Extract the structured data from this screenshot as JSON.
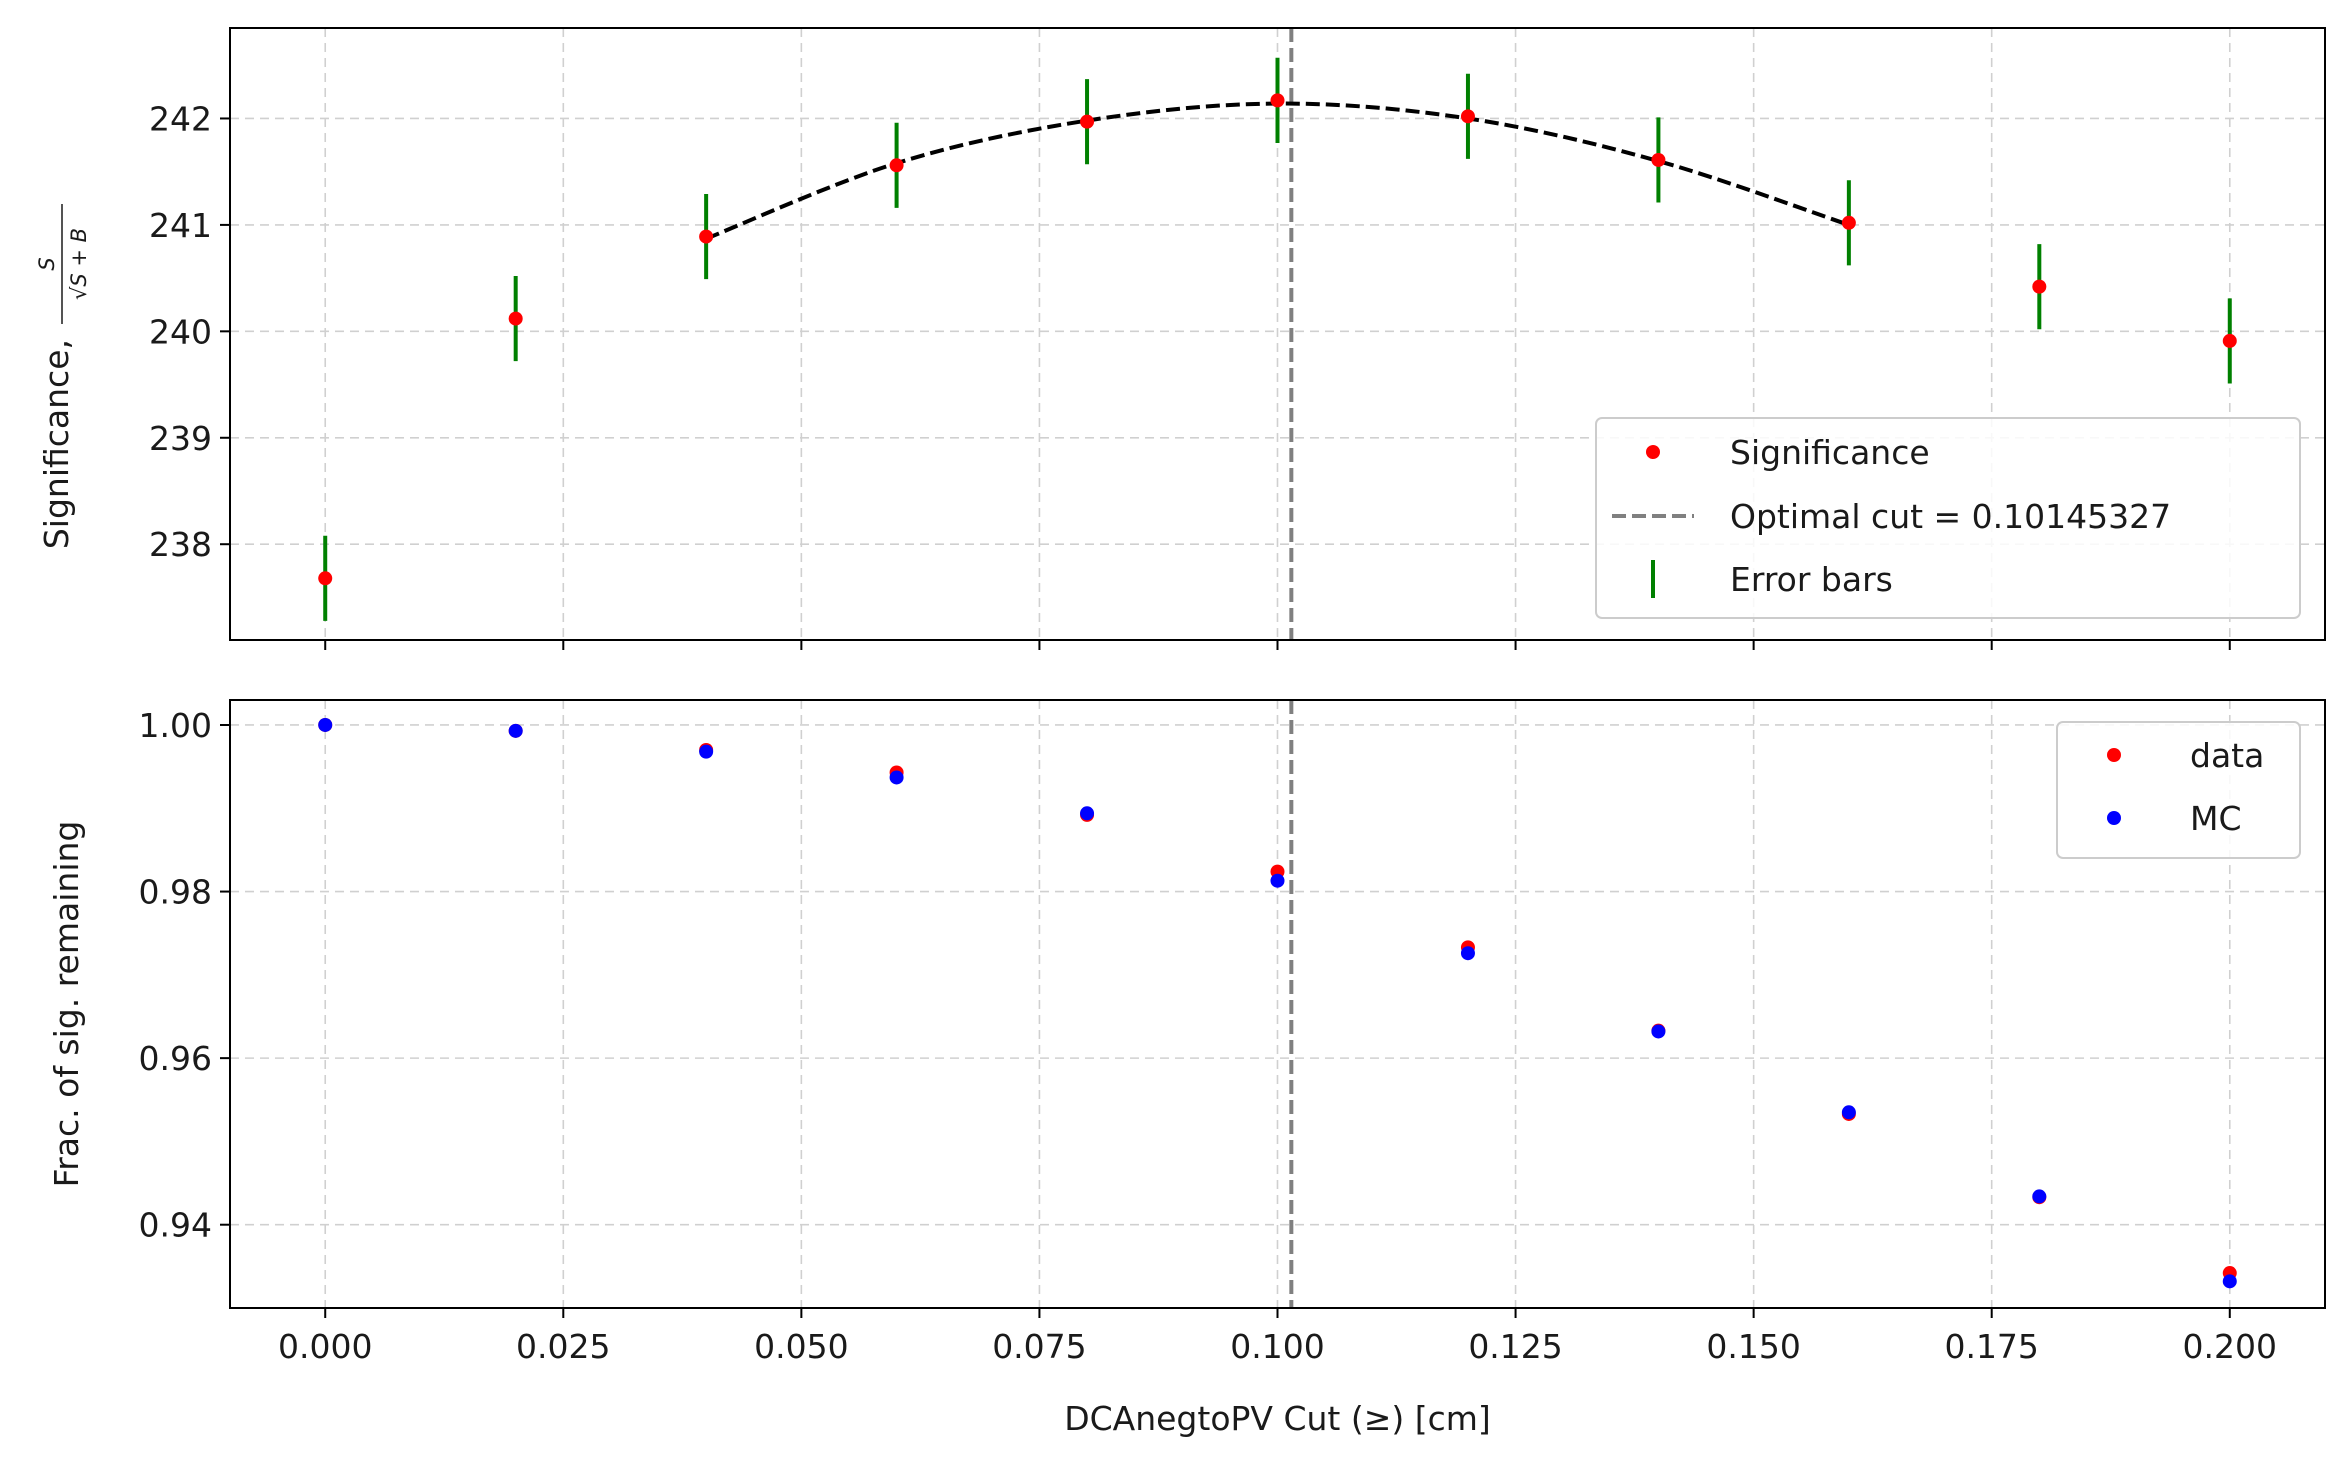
{
  "chart_data": [
    {
      "type": "scatter",
      "panel": "top",
      "xlim": [
        -0.01,
        0.21
      ],
      "ylim": [
        237.1,
        242.85
      ],
      "xticks": [
        0.0,
        0.025,
        0.05,
        0.075,
        0.1,
        0.125,
        0.15,
        0.175,
        0.2
      ],
      "yticks": [
        238,
        239,
        240,
        241,
        242
      ],
      "ytick_labels": [
        "238",
        "239",
        "240",
        "241",
        "242"
      ],
      "ylabel": "Significance,",
      "ylabel_fraction": {
        "numerator": "S",
        "denominator": "√S + B"
      },
      "grid": true,
      "legend_position": "lower-right",
      "x": [
        0.0,
        0.02,
        0.04,
        0.06,
        0.08,
        0.1,
        0.12,
        0.14,
        0.16,
        0.18,
        0.2
      ],
      "series": [
        {
          "name": "Significance",
          "color": "#ff0000",
          "values": [
            237.68,
            240.12,
            240.89,
            241.56,
            241.97,
            242.17,
            242.02,
            241.61,
            241.02,
            240.42,
            239.91
          ]
        },
        {
          "name": "Error bars",
          "color": "#008000",
          "errors": [
            0.4,
            0.4,
            0.4,
            0.4,
            0.4,
            0.4,
            0.4,
            0.4,
            0.4,
            0.4,
            0.4
          ]
        }
      ],
      "fit_curve": {
        "color": "#000000",
        "style": "dashed",
        "x": [
          0.04,
          0.06,
          0.08,
          0.1,
          0.12,
          0.14,
          0.16
        ],
        "values": [
          240.87,
          241.58,
          241.98,
          242.14,
          242.0,
          241.6,
          241.0
        ]
      },
      "optimal_cut": {
        "x": 0.10145327,
        "label": "Optimal cut = 0.10145327",
        "color": "#808080",
        "style": "dashed"
      }
    },
    {
      "type": "scatter",
      "panel": "bottom",
      "xlim": [
        -0.01,
        0.21
      ],
      "ylim": [
        0.93,
        1.003
      ],
      "xticks": [
        0.0,
        0.025,
        0.05,
        0.075,
        0.1,
        0.125,
        0.15,
        0.175,
        0.2
      ],
      "xtick_labels": [
        "0.000",
        "0.025",
        "0.050",
        "0.075",
        "0.100",
        "0.125",
        "0.150",
        "0.175",
        "0.200"
      ],
      "yticks": [
        0.94,
        0.96,
        0.98,
        1.0
      ],
      "ytick_labels": [
        "0.94",
        "0.96",
        "0.98",
        "1.00"
      ],
      "xlabel": "DCAnegtoPV Cut (≥) [cm]",
      "ylabel": "Frac. of sig. remaining",
      "grid": true,
      "legend_position": "upper-right",
      "x": [
        0.0,
        0.02,
        0.04,
        0.06,
        0.08,
        0.1,
        0.12,
        0.14,
        0.16,
        0.18,
        0.2
      ],
      "series": [
        {
          "name": "data",
          "color": "#ff0000",
          "values": [
            1.0,
            0.9993,
            0.997,
            0.9943,
            0.9892,
            0.9824,
            0.9733,
            0.9633,
            0.9533,
            0.9433,
            0.9342
          ]
        },
        {
          "name": "MC",
          "color": "#0000ff",
          "values": [
            1.0,
            0.9993,
            0.9968,
            0.9937,
            0.9894,
            0.9813,
            0.9726,
            0.9632,
            0.9535,
            0.9434,
            0.9332
          ]
        }
      ],
      "optimal_cut": {
        "x": 0.10145327,
        "color": "#808080",
        "style": "dashed"
      }
    }
  ]
}
